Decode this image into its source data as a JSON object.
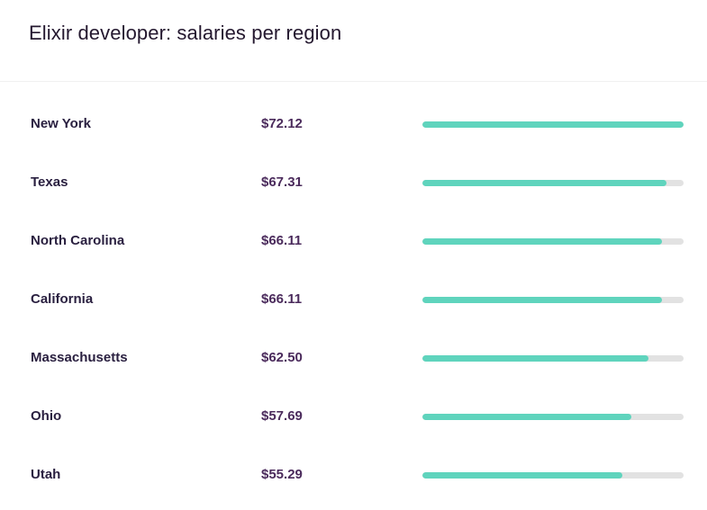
{
  "title": "Elixir developer: salaries per region",
  "colors": {
    "bar_fill": "#5fd4bd",
    "bar_track": "#e2e2e2",
    "salary_text": "#4b2b5c"
  },
  "max_salary": 72.12,
  "rows": [
    {
      "region": "New York",
      "salary_label": "$72.12",
      "value": 72.12
    },
    {
      "region": "Texas",
      "salary_label": "$67.31",
      "value": 67.31
    },
    {
      "region": "North Carolina",
      "salary_label": "$66.11",
      "value": 66.11
    },
    {
      "region": "California",
      "salary_label": "$66.11",
      "value": 66.11
    },
    {
      "region": "Massachusetts",
      "salary_label": "$62.50",
      "value": 62.5
    },
    {
      "region": "Ohio",
      "salary_label": "$57.69",
      "value": 57.69
    },
    {
      "region": "Utah",
      "salary_label": "$55.29",
      "value": 55.29
    }
  ]
}
